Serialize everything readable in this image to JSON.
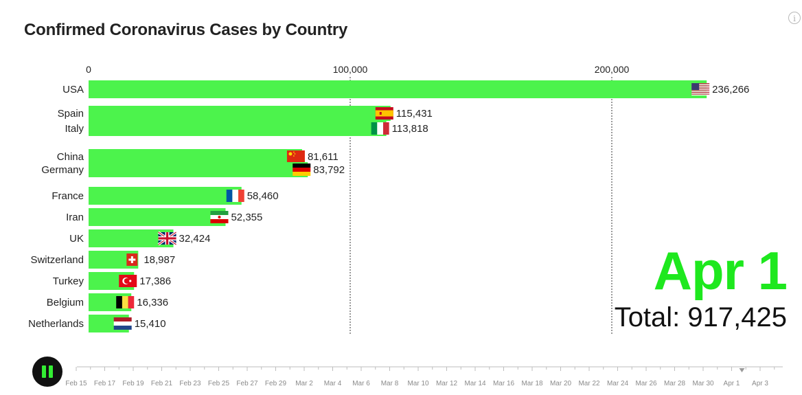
{
  "title": "Confirmed Coronavirus Cases by Country",
  "date_label": "Apr 1",
  "total_prefix": "Total: ",
  "total_value": "917,425",
  "info_glyph": "i",
  "colors": {
    "bar": "#4cf34c",
    "date": "#1ee81e",
    "play_bg": "#111111",
    "play_icon": "#33ee33"
  },
  "chart_data": {
    "type": "bar",
    "orientation": "horizontal",
    "title": "Confirmed Coronavirus Cases by Country",
    "xlim": [
      0,
      250000
    ],
    "x_ticks": [
      0,
      100000,
      200000
    ],
    "x_tick_labels": [
      "0",
      "100,000",
      "200,000"
    ],
    "grid": "vertical dashed at ticks",
    "categories": [
      "USA",
      "Spain",
      "Italy",
      "China",
      "Germany",
      "France",
      "Iran",
      "UK",
      "Switzerland",
      "Turkey",
      "Belgium",
      "Netherlands"
    ],
    "values": [
      236266,
      115431,
      113818,
      81611,
      83792,
      58460,
      52355,
      32424,
      18987,
      17386,
      16336,
      15410
    ],
    "value_labels": [
      "236,266",
      "115,431",
      "113,818",
      "81,611",
      "83,792",
      "58,460",
      "52,355",
      "32,424",
      "18,987",
      "17,386",
      "16,336",
      "15,410"
    ],
    "flags": [
      "usa-flag-icon",
      "spain-flag-icon",
      "italy-flag-icon",
      "china-flag-icon",
      "germany-flag-icon",
      "france-flag-icon",
      "iran-flag-icon",
      "uk-flag-icon",
      "switzerland-flag-icon",
      "turkey-flag-icon",
      "belgium-flag-icon",
      "netherlands-flag-icon"
    ]
  },
  "timeline": {
    "labels": [
      "Feb 15",
      "Feb 17",
      "Feb 19",
      "Feb 21",
      "Feb 23",
      "Feb 25",
      "Feb 27",
      "Feb 29",
      "Mar 2",
      "Mar 4",
      "Mar 6",
      "Mar 8",
      "Mar 10",
      "Mar 12",
      "Mar 14",
      "Mar 16",
      "Mar 18",
      "Mar 20",
      "Mar 22",
      "Mar 24",
      "Mar 26",
      "Mar 28",
      "Mar 30",
      "Apr 1",
      "Apr 3"
    ],
    "current": "Apr 1"
  }
}
